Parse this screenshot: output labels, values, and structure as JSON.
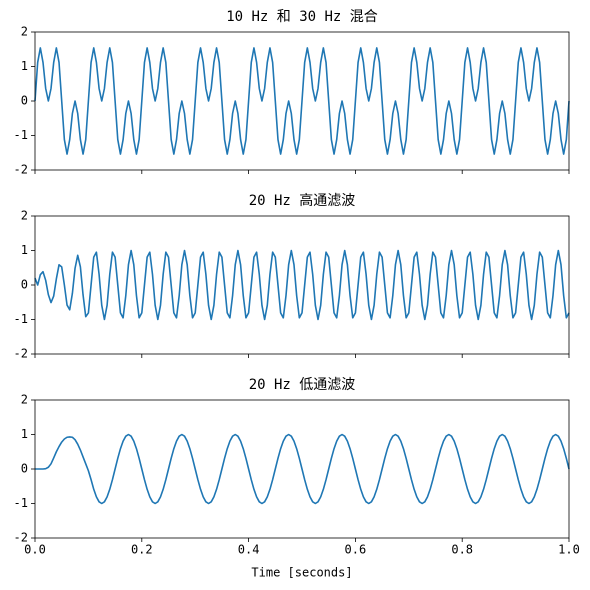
{
  "chart_data": [
    {
      "type": "line",
      "title": "10 Hz 和 30 Hz 混合",
      "color": "#1f77b4",
      "xlim": [
        0,
        1
      ],
      "ylim": [
        -2,
        2
      ],
      "yticks": [
        -2,
        -1,
        0,
        1,
        2
      ],
      "x": [
        0,
        0.005,
        0.01,
        0.015,
        0.02,
        0.025,
        0.03,
        0.035,
        0.04,
        0.045,
        0.05,
        0.055,
        0.06,
        0.065,
        0.07,
        0.075,
        0.08,
        0.085,
        0.09,
        0.095,
        0.1,
        0.105,
        0.11,
        0.115,
        0.12,
        0.125,
        0.13,
        0.135,
        0.14,
        0.145,
        0.15,
        0.155,
        0.16,
        0.165,
        0.17,
        0.175,
        0.18,
        0.185,
        0.19,
        0.195,
        0.2,
        0.205,
        0.21,
        0.215,
        0.22,
        0.225,
        0.23,
        0.235,
        0.24,
        0.245,
        0.25,
        0.255,
        0.26,
        0.265,
        0.27,
        0.275,
        0.28,
        0.285,
        0.29,
        0.295,
        0.3,
        0.305,
        0.31,
        0.315,
        0.32,
        0.325,
        0.33,
        0.335,
        0.34,
        0.345,
        0.35,
        0.355,
        0.36,
        0.365,
        0.37,
        0.375,
        0.38,
        0.385,
        0.39,
        0.395,
        0.4,
        0.405,
        0.41,
        0.415,
        0.42,
        0.425,
        0.43,
        0.435,
        0.44,
        0.445,
        0.45,
        0.455,
        0.46,
        0.465,
        0.47,
        0.475,
        0.48,
        0.485,
        0.49,
        0.495,
        0.5,
        0.505,
        0.51,
        0.515,
        0.52,
        0.525,
        0.53,
        0.535,
        0.54,
        0.545,
        0.55,
        0.555,
        0.56,
        0.565,
        0.57,
        0.575,
        0.58,
        0.585,
        0.59,
        0.595,
        0.6,
        0.605,
        0.61,
        0.615,
        0.62,
        0.625,
        0.63,
        0.635,
        0.64,
        0.645,
        0.65,
        0.655,
        0.66,
        0.665,
        0.67,
        0.675,
        0.68,
        0.685,
        0.69,
        0.695,
        0.7,
        0.705,
        0.71,
        0.715,
        0.72,
        0.725,
        0.73,
        0.735,
        0.74,
        0.745,
        0.75,
        0.755,
        0.76,
        0.765,
        0.77,
        0.775,
        0.78,
        0.785,
        0.79,
        0.795,
        0.8,
        0.805,
        0.81,
        0.815,
        0.82,
        0.825,
        0.83,
        0.835,
        0.84,
        0.845,
        0.85,
        0.855,
        0.86,
        0.865,
        0.87,
        0.875,
        0.88,
        0.885,
        0.89,
        0.895,
        0.9,
        0.905,
        0.91,
        0.915,
        0.92,
        0.925,
        0.93,
        0.935,
        0.94,
        0.945,
        0.95,
        0.955,
        0.96,
        0.965,
        0.97,
        0.975,
        0.98,
        0.985,
        0.99,
        0.995,
        1
      ],
      "values": [
        0,
        1.118,
        1.539,
        1.118,
        0.363,
        0,
        0.363,
        1.118,
        1.539,
        1.118,
        0,
        -1.118,
        -1.539,
        -1.118,
        -0.363,
        0,
        -0.363,
        -1.118,
        -1.539,
        -1.118,
        0,
        1.118,
        1.539,
        1.118,
        0.363,
        0,
        0.363,
        1.118,
        1.539,
        1.118,
        0,
        -1.118,
        -1.539,
        -1.118,
        -0.363,
        0,
        -0.363,
        -1.118,
        -1.539,
        -1.118,
        0,
        1.118,
        1.539,
        1.118,
        0.363,
        0,
        0.363,
        1.118,
        1.539,
        1.118,
        0,
        -1.118,
        -1.539,
        -1.118,
        -0.363,
        0,
        -0.363,
        -1.118,
        -1.539,
        -1.118,
        0,
        1.118,
        1.539,
        1.118,
        0.363,
        0,
        0.363,
        1.118,
        1.539,
        1.118,
        0,
        -1.118,
        -1.539,
        -1.118,
        -0.363,
        0,
        -0.363,
        -1.118,
        -1.539,
        -1.118,
        0,
        1.118,
        1.539,
        1.118,
        0.363,
        0,
        0.363,
        1.118,
        1.539,
        1.118,
        0,
        -1.118,
        -1.539,
        -1.118,
        -0.363,
        0,
        -0.363,
        -1.118,
        -1.539,
        -1.118,
        0,
        1.118,
        1.539,
        1.118,
        0.363,
        0,
        0.363,
        1.118,
        1.539,
        1.118,
        0,
        -1.118,
        -1.539,
        -1.118,
        -0.363,
        0,
        -0.363,
        -1.118,
        -1.539,
        -1.118,
        0,
        1.118,
        1.539,
        1.118,
        0.363,
        0,
        0.363,
        1.118,
        1.539,
        1.118,
        0,
        -1.118,
        -1.539,
        -1.118,
        -0.363,
        0,
        -0.363,
        -1.118,
        -1.539,
        -1.118,
        0,
        1.118,
        1.539,
        1.118,
        0.363,
        0,
        0.363,
        1.118,
        1.539,
        1.118,
        0,
        -1.118,
        -1.539,
        -1.118,
        -0.363,
        0,
        -0.363,
        -1.118,
        -1.539,
        -1.118,
        0,
        1.118,
        1.539,
        1.118,
        0.363,
        0,
        0.363,
        1.118,
        1.539,
        1.118,
        0,
        -1.118,
        -1.539,
        -1.118,
        -0.363,
        0,
        -0.363,
        -1.118,
        -1.539,
        -1.118,
        0,
        1.118,
        1.539,
        1.118,
        0.363,
        0,
        0.363,
        1.118,
        1.539,
        1.118,
        0,
        -1.118,
        -1.539,
        -1.118,
        -0.363,
        0,
        -0.363,
        -1.118,
        -1.539,
        -1.118,
        0
      ]
    },
    {
      "type": "line",
      "title": "20 Hz 高通滤波",
      "color": "#1f77b4",
      "xlim": [
        0,
        1
      ],
      "ylim": [
        -2,
        2
      ],
      "yticks": [
        -2,
        -1,
        0,
        1,
        2
      ],
      "x": [
        0,
        0.005,
        0.01,
        0.015,
        0.02,
        0.025,
        0.03,
        0.035,
        0.04,
        0.045,
        0.05,
        0.055,
        0.06,
        0.065,
        0.07,
        0.075,
        0.08,
        0.085,
        0.09,
        0.095,
        0.1,
        0.105,
        0.11,
        0.115,
        0.12,
        0.125,
        0.13,
        0.135,
        0.14,
        0.145,
        0.15,
        0.155,
        0.16,
        0.165,
        0.17,
        0.175,
        0.18,
        0.185,
        0.19,
        0.195,
        0.2,
        0.205,
        0.21,
        0.215,
        0.22,
        0.225,
        0.23,
        0.235,
        0.24,
        0.245,
        0.25,
        0.255,
        0.26,
        0.265,
        0.27,
        0.275,
        0.28,
        0.285,
        0.29,
        0.295,
        0.3,
        0.305,
        0.31,
        0.315,
        0.32,
        0.325,
        0.33,
        0.335,
        0.34,
        0.345,
        0.35,
        0.355,
        0.36,
        0.365,
        0.37,
        0.375,
        0.38,
        0.385,
        0.39,
        0.395,
        0.4,
        0.405,
        0.41,
        0.415,
        0.42,
        0.425,
        0.43,
        0.435,
        0.44,
        0.445,
        0.45,
        0.455,
        0.46,
        0.465,
        0.47,
        0.475,
        0.48,
        0.485,
        0.49,
        0.495,
        0.5,
        0.505,
        0.51,
        0.515,
        0.52,
        0.525,
        0.53,
        0.535,
        0.54,
        0.545,
        0.55,
        0.555,
        0.56,
        0.565,
        0.57,
        0.575,
        0.58,
        0.585,
        0.59,
        0.595,
        0.6,
        0.605,
        0.61,
        0.615,
        0.62,
        0.625,
        0.63,
        0.635,
        0.64,
        0.645,
        0.65,
        0.655,
        0.66,
        0.665,
        0.67,
        0.675,
        0.68,
        0.685,
        0.69,
        0.695,
        0.7,
        0.705,
        0.71,
        0.715,
        0.72,
        0.725,
        0.73,
        0.735,
        0.74,
        0.745,
        0.75,
        0.755,
        0.76,
        0.765,
        0.77,
        0.775,
        0.78,
        0.785,
        0.79,
        0.795,
        0.8,
        0.805,
        0.81,
        0.815,
        0.82,
        0.825,
        0.83,
        0.835,
        0.84,
        0.845,
        0.85,
        0.855,
        0.86,
        0.865,
        0.87,
        0.875,
        0.88,
        0.885,
        0.89,
        0.895,
        0.9,
        0.905,
        0.91,
        0.915,
        0.92,
        0.925,
        0.93,
        0.935,
        0.94,
        0.945,
        0.95,
        0.955,
        0.96,
        0.965,
        0.97,
        0.975,
        0.98,
        0.985,
        0.99,
        0.995,
        1
      ],
      "values": [
        0.2,
        0,
        0.3,
        0.385,
        0.136,
        -0.279,
        -0.51,
        -0.32,
        0.179,
        0.585,
        0.526,
        0,
        -0.582,
        -0.718,
        -0.244,
        0.485,
        0.86,
        0.526,
        -0.287,
        -0.918,
        -0.809,
        0,
        0.809,
        0.951,
        0.309,
        -0.588,
        -1,
        -0.588,
        0.309,
        0.951,
        0.809,
        0,
        -0.809,
        -0.951,
        -0.309,
        0.588,
        1,
        0.588,
        -0.309,
        -0.951,
        -0.809,
        0,
        0.809,
        0.951,
        0.309,
        -0.588,
        -1,
        -0.588,
        0.309,
        0.951,
        0.809,
        0,
        -0.809,
        -0.951,
        -0.309,
        0.588,
        1,
        0.588,
        -0.309,
        -0.951,
        -0.809,
        0,
        0.809,
        0.951,
        0.309,
        -0.588,
        -1,
        -0.588,
        0.309,
        0.951,
        0.809,
        0,
        -0.809,
        -0.951,
        -0.309,
        0.588,
        1,
        0.588,
        -0.309,
        -0.951,
        -0.809,
        0,
        0.809,
        0.951,
        0.309,
        -0.588,
        -1,
        -0.588,
        0.309,
        0.951,
        0.809,
        0,
        -0.809,
        -0.951,
        -0.309,
        0.588,
        1,
        0.588,
        -0.309,
        -0.951,
        -0.809,
        0,
        0.809,
        0.951,
        0.309,
        -0.588,
        -1,
        -0.588,
        0.309,
        0.951,
        0.809,
        0,
        -0.809,
        -0.951,
        -0.309,
        0.588,
        1,
        0.588,
        -0.309,
        -0.951,
        -0.809,
        0,
        0.809,
        0.951,
        0.309,
        -0.588,
        -1,
        -0.588,
        0.309,
        0.951,
        0.809,
        0,
        -0.809,
        -0.951,
        -0.309,
        0.588,
        1,
        0.588,
        -0.309,
        -0.951,
        -0.809,
        0,
        0.809,
        0.951,
        0.309,
        -0.588,
        -1,
        -0.588,
        0.309,
        0.951,
        0.809,
        0,
        -0.809,
        -0.951,
        -0.309,
        0.588,
        1,
        0.588,
        -0.309,
        -0.951,
        -0.809,
        0,
        0.809,
        0.951,
        0.309,
        -0.588,
        -1,
        -0.588,
        0.309,
        0.951,
        0.809,
        0,
        -0.809,
        -0.951,
        -0.309,
        0.588,
        1,
        0.588,
        -0.309,
        -0.951,
        -0.809,
        0,
        0.809,
        0.951,
        0.309,
        -0.588,
        -1,
        -0.588,
        0.309,
        0.951,
        0.809,
        0,
        -0.809,
        -0.951,
        -0.309,
        0.588,
        1,
        0.588,
        -0.309,
        -0.951,
        -0.809
      ]
    },
    {
      "type": "line",
      "title": "20 Hz 低通滤波",
      "xlabel": "Time [seconds]",
      "color": "#1f77b4",
      "xlim": [
        0,
        1
      ],
      "ylim": [
        -2,
        2
      ],
      "yticks": [
        -2,
        -1,
        0,
        1,
        2
      ],
      "xticks": [
        {
          "value": 0,
          "label": "0.0"
        },
        0.2,
        0.4,
        0.6,
        0.8,
        {
          "value": 1,
          "label": "1.0"
        }
      ],
      "x": [
        0,
        0.005,
        0.01,
        0.015,
        0.02,
        0.025,
        0.03,
        0.035,
        0.04,
        0.045,
        0.05,
        0.055,
        0.06,
        0.065,
        0.07,
        0.075,
        0.08,
        0.085,
        0.09,
        0.095,
        0.1,
        0.105,
        0.11,
        0.115,
        0.12,
        0.125,
        0.13,
        0.135,
        0.14,
        0.145,
        0.15,
        0.155,
        0.16,
        0.165,
        0.17,
        0.175,
        0.18,
        0.185,
        0.19,
        0.195,
        0.2,
        0.205,
        0.21,
        0.215,
        0.22,
        0.225,
        0.23,
        0.235,
        0.24,
        0.245,
        0.25,
        0.255,
        0.26,
        0.265,
        0.27,
        0.275,
        0.28,
        0.285,
        0.29,
        0.295,
        0.3,
        0.305,
        0.31,
        0.315,
        0.32,
        0.325,
        0.33,
        0.335,
        0.34,
        0.345,
        0.35,
        0.355,
        0.36,
        0.365,
        0.37,
        0.375,
        0.38,
        0.385,
        0.39,
        0.395,
        0.4,
        0.405,
        0.41,
        0.415,
        0.42,
        0.425,
        0.43,
        0.435,
        0.44,
        0.445,
        0.45,
        0.455,
        0.46,
        0.465,
        0.47,
        0.475,
        0.48,
        0.485,
        0.49,
        0.495,
        0.5,
        0.505,
        0.51,
        0.515,
        0.52,
        0.525,
        0.53,
        0.535,
        0.54,
        0.545,
        0.55,
        0.555,
        0.56,
        0.565,
        0.57,
        0.575,
        0.58,
        0.585,
        0.59,
        0.595,
        0.6,
        0.605,
        0.61,
        0.615,
        0.62,
        0.625,
        0.63,
        0.635,
        0.64,
        0.645,
        0.65,
        0.655,
        0.66,
        0.665,
        0.67,
        0.675,
        0.68,
        0.685,
        0.69,
        0.695,
        0.7,
        0.705,
        0.71,
        0.715,
        0.72,
        0.725,
        0.73,
        0.735,
        0.74,
        0.745,
        0.75,
        0.755,
        0.76,
        0.765,
        0.77,
        0.775,
        0.78,
        0.785,
        0.79,
        0.795,
        0.8,
        0.805,
        0.81,
        0.815,
        0.82,
        0.825,
        0.83,
        0.835,
        0.84,
        0.845,
        0.85,
        0.855,
        0.86,
        0.865,
        0.87,
        0.875,
        0.88,
        0.885,
        0.89,
        0.895,
        0.9,
        0.905,
        0.91,
        0.915,
        0.92,
        0.925,
        0.93,
        0.935,
        0.94,
        0.945,
        0.95,
        0.955,
        0.96,
        0.965,
        0.97,
        0.975,
        0.98,
        0.985,
        0.99,
        0.995,
        1
      ],
      "values": [
        0,
        0,
        0,
        0,
        0.01,
        0.05,
        0.15,
        0.32,
        0.5,
        0.65,
        0.78,
        0.87,
        0.92,
        0.93,
        0.92,
        0.85,
        0.72,
        0.55,
        0.35,
        0.15,
        -0.05,
        -0.309,
        -0.588,
        -0.809,
        -0.951,
        -1,
        -0.951,
        -0.809,
        -0.588,
        -0.309,
        0,
        0.309,
        0.588,
        0.809,
        0.951,
        1,
        0.951,
        0.809,
        0.588,
        0.309,
        0,
        -0.309,
        -0.588,
        -0.809,
        -0.951,
        -1,
        -0.951,
        -0.809,
        -0.588,
        -0.309,
        0,
        0.309,
        0.588,
        0.809,
        0.951,
        1,
        0.951,
        0.809,
        0.588,
        0.309,
        0,
        -0.309,
        -0.588,
        -0.809,
        -0.951,
        -1,
        -0.951,
        -0.809,
        -0.588,
        -0.309,
        0,
        0.309,
        0.588,
        0.809,
        0.951,
        1,
        0.951,
        0.809,
        0.588,
        0.309,
        0,
        -0.309,
        -0.588,
        -0.809,
        -0.951,
        -1,
        -0.951,
        -0.809,
        -0.588,
        -0.309,
        0,
        0.309,
        0.588,
        0.809,
        0.951,
        1,
        0.951,
        0.809,
        0.588,
        0.309,
        0,
        -0.309,
        -0.588,
        -0.809,
        -0.951,
        -1,
        -0.951,
        -0.809,
        -0.588,
        -0.309,
        0,
        0.309,
        0.588,
        0.809,
        0.951,
        1,
        0.951,
        0.809,
        0.588,
        0.309,
        0,
        -0.309,
        -0.588,
        -0.809,
        -0.951,
        -1,
        -0.951,
        -0.809,
        -0.588,
        -0.309,
        0,
        0.309,
        0.588,
        0.809,
        0.951,
        1,
        0.951,
        0.809,
        0.588,
        0.309,
        0,
        -0.309,
        -0.588,
        -0.809,
        -0.951,
        -1,
        -0.951,
        -0.809,
        -0.588,
        -0.309,
        0,
        0.309,
        0.588,
        0.809,
        0.951,
        1,
        0.951,
        0.809,
        0.588,
        0.309,
        0,
        -0.309,
        -0.588,
        -0.809,
        -0.951,
        -1,
        -0.951,
        -0.809,
        -0.588,
        -0.309,
        0,
        0.309,
        0.588,
        0.809,
        0.951,
        1,
        0.951,
        0.809,
        0.588,
        0.309,
        0,
        -0.309,
        -0.588,
        -0.809,
        -0.951,
        -1,
        -0.951,
        -0.809,
        -0.588,
        -0.309,
        0,
        0.309,
        0.588,
        0.809,
        0.951,
        1,
        0.951,
        0.809,
        0.588,
        0.309,
        0
      ]
    }
  ]
}
